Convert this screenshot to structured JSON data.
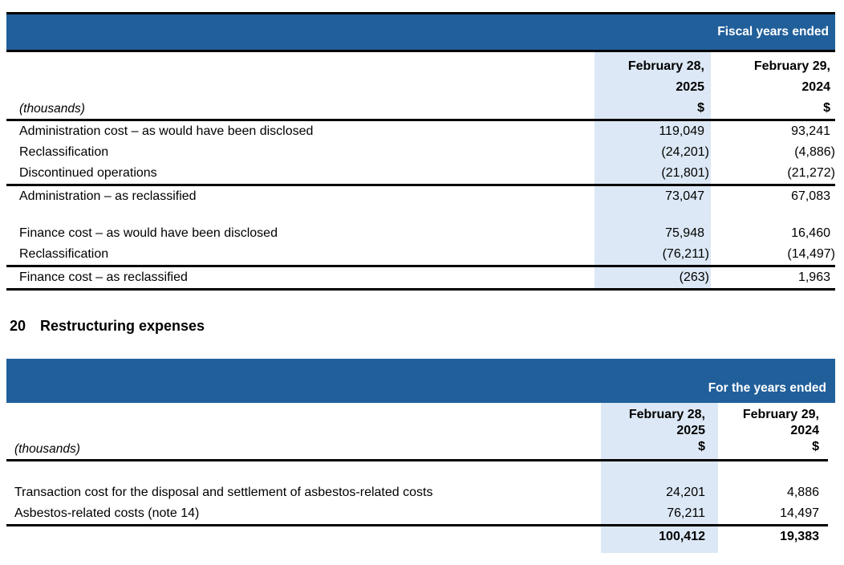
{
  "colors": {
    "banner_blue": "#215F9A",
    "column_highlight": "#DCE8F5",
    "rule_black": "#000000"
  },
  "table1": {
    "banner": "Fiscal years ended",
    "unit_label": "(thousands)",
    "col_2025": [
      "February 28,",
      "2025",
      "$"
    ],
    "col_2024": [
      "February 29,",
      "2024",
      "$"
    ],
    "rows": [
      {
        "label": "Administration cost – as would have been disclosed",
        "v2025": "119,049",
        "v2024": "93,241"
      },
      {
        "label": "Reclassification",
        "v2025": "(24,201)",
        "v2024": "(4,886)"
      },
      {
        "label": "Discontinued operations",
        "v2025": "(21,801)",
        "v2024": "(21,272)"
      },
      {
        "label": "Administration – as reclassified",
        "v2025": "73,047",
        "v2024": "67,083"
      },
      {
        "label": "Finance cost – as would have been disclosed",
        "v2025": "75,948",
        "v2024": "16,460"
      },
      {
        "label": "Reclassification",
        "v2025": "(76,211)",
        "v2024": "(14,497)"
      },
      {
        "label": "Finance cost – as reclassified",
        "v2025": "(263)",
        "v2024": "1,963"
      }
    ]
  },
  "heading": {
    "number": "20",
    "title": "Restructuring expenses"
  },
  "table2": {
    "banner": "For the years ended",
    "unit_label": "(thousands)",
    "col_2025": [
      "February 28,",
      "2025",
      "$"
    ],
    "col_2024": [
      "February 29,",
      "2024",
      "$"
    ],
    "rows": [
      {
        "label": "Transaction cost for the disposal and settlement of asbestos-related costs",
        "v2025": "24,201",
        "v2024": "4,886"
      },
      {
        "label": "Asbestos-related costs (note 14)",
        "v2025": "76,211",
        "v2024": "14,497"
      }
    ],
    "total": {
      "v2025": "100,412",
      "v2024": "19,383"
    }
  }
}
